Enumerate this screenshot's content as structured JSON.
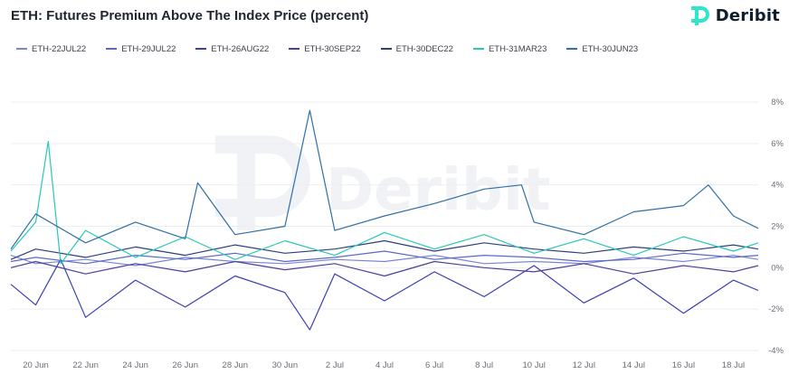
{
  "header": {
    "title": "ETH: Futures Premium Above The Index Price (percent)",
    "brand": "Deribit"
  },
  "watermark": {
    "text": "Deribit"
  },
  "colors": {
    "accent": "#2ee6c8",
    "grid": "#eceef2",
    "logo": "#2ee6c8"
  },
  "chart_data": {
    "type": "line",
    "title": "ETH: Futures Premium Above The Index Price (percent)",
    "xlabel": "",
    "ylabel": "",
    "ylim": [
      -4,
      8
    ],
    "y_ticks": [
      8,
      6,
      4,
      2,
      0,
      -2,
      -4
    ],
    "y_tick_labels": [
      "8%",
      "6%",
      "4%",
      "2%",
      "0%",
      "-2%",
      "-4%"
    ],
    "x_range": [
      "2022-06-19",
      "2022-07-19"
    ],
    "x_ticks": [
      "2022-06-20",
      "2022-06-22",
      "2022-06-24",
      "2022-06-26",
      "2022-06-28",
      "2022-06-30",
      "2022-07-02",
      "2022-07-04",
      "2022-07-06",
      "2022-07-08",
      "2022-07-10",
      "2022-07-12",
      "2022-07-14",
      "2022-07-16",
      "2022-07-18"
    ],
    "x_tick_labels": [
      "20 Jun",
      "22 Jun",
      "24 Jun",
      "26 Jun",
      "28 Jun",
      "30 Jun",
      "2 Jul",
      "4 Jul",
      "6 Jul",
      "8 Jul",
      "10 Jul",
      "12 Jul",
      "14 Jul",
      "16 Jul",
      "18 Jul"
    ],
    "grid": true,
    "legend_position": "top-left",
    "y_axis_position": "right",
    "series": [
      {
        "name": "ETH-22JUL22",
        "color": "#7b86d6",
        "points": [
          [
            "2022-06-19",
            0.6
          ],
          [
            "2022-06-20",
            0.2
          ],
          [
            "2022-06-22",
            0.4
          ],
          [
            "2022-06-24",
            0.1
          ],
          [
            "2022-06-26",
            0.5
          ],
          [
            "2022-06-28",
            0.3
          ],
          [
            "2022-06-30",
            0.2
          ],
          [
            "2022-07-02",
            0.4
          ],
          [
            "2022-07-04",
            0.3
          ],
          [
            "2022-07-06",
            0.6
          ],
          [
            "2022-07-08",
            0.2
          ],
          [
            "2022-07-10",
            0.3
          ],
          [
            "2022-07-12",
            0.2
          ],
          [
            "2022-07-14",
            0.5
          ],
          [
            "2022-07-16",
            0.3
          ],
          [
            "2022-07-18",
            0.6
          ],
          [
            "2022-07-19",
            0.4
          ]
        ]
      },
      {
        "name": "ETH-29JUL22",
        "color": "#5a69c9",
        "points": [
          [
            "2022-06-19",
            0.3
          ],
          [
            "2022-06-20",
            0.5
          ],
          [
            "2022-06-22",
            0.2
          ],
          [
            "2022-06-24",
            0.6
          ],
          [
            "2022-06-26",
            0.4
          ],
          [
            "2022-06-28",
            0.7
          ],
          [
            "2022-06-30",
            0.3
          ],
          [
            "2022-07-02",
            0.5
          ],
          [
            "2022-07-04",
            0.8
          ],
          [
            "2022-07-06",
            0.4
          ],
          [
            "2022-07-08",
            0.6
          ],
          [
            "2022-07-10",
            0.5
          ],
          [
            "2022-07-12",
            0.3
          ],
          [
            "2022-07-14",
            0.4
          ],
          [
            "2022-07-16",
            0.7
          ],
          [
            "2022-07-18",
            0.5
          ],
          [
            "2022-07-19",
            0.6
          ]
        ]
      },
      {
        "name": "ETH-26AUG22",
        "color": "#3b3fb0",
        "points": [
          [
            "2022-06-19",
            -0.8
          ],
          [
            "2022-06-20",
            -1.8
          ],
          [
            "2022-06-21",
            0.4
          ],
          [
            "2022-06-22",
            -2.4
          ],
          [
            "2022-06-24",
            -0.6
          ],
          [
            "2022-06-26",
            -1.9
          ],
          [
            "2022-06-28",
            -0.4
          ],
          [
            "2022-06-30",
            -1.2
          ],
          [
            "2022-07-01",
            -3.0
          ],
          [
            "2022-07-02",
            -0.3
          ],
          [
            "2022-07-04",
            -1.6
          ],
          [
            "2022-07-06",
            -0.2
          ],
          [
            "2022-07-08",
            -1.4
          ],
          [
            "2022-07-10",
            0.1
          ],
          [
            "2022-07-12",
            -1.7
          ],
          [
            "2022-07-14",
            -0.5
          ],
          [
            "2022-07-16",
            -2.2
          ],
          [
            "2022-07-18",
            -0.6
          ],
          [
            "2022-07-19",
            -1.1
          ]
        ]
      },
      {
        "name": "ETH-30SEP22",
        "color": "#4a3f9a",
        "points": [
          [
            "2022-06-19",
            0.0
          ],
          [
            "2022-06-20",
            0.3
          ],
          [
            "2022-06-22",
            -0.3
          ],
          [
            "2022-06-24",
            0.2
          ],
          [
            "2022-06-26",
            -0.2
          ],
          [
            "2022-06-28",
            0.3
          ],
          [
            "2022-06-30",
            -0.1
          ],
          [
            "2022-07-02",
            0.2
          ],
          [
            "2022-07-04",
            -0.4
          ],
          [
            "2022-07-06",
            0.3
          ],
          [
            "2022-07-08",
            0.0
          ],
          [
            "2022-07-10",
            -0.2
          ],
          [
            "2022-07-12",
            0.2
          ],
          [
            "2022-07-14",
            -0.3
          ],
          [
            "2022-07-16",
            0.1
          ],
          [
            "2022-07-18",
            -0.2
          ],
          [
            "2022-07-19",
            0.1
          ]
        ]
      },
      {
        "name": "ETH-30DEC22",
        "color": "#2c3f7e",
        "points": [
          [
            "2022-06-19",
            0.4
          ],
          [
            "2022-06-20",
            0.9
          ],
          [
            "2022-06-22",
            0.5
          ],
          [
            "2022-06-24",
            1.0
          ],
          [
            "2022-06-26",
            0.6
          ],
          [
            "2022-06-28",
            1.1
          ],
          [
            "2022-06-30",
            0.7
          ],
          [
            "2022-07-02",
            0.9
          ],
          [
            "2022-07-04",
            1.3
          ],
          [
            "2022-07-06",
            0.8
          ],
          [
            "2022-07-08",
            1.2
          ],
          [
            "2022-07-10",
            0.9
          ],
          [
            "2022-07-12",
            0.7
          ],
          [
            "2022-07-14",
            1.0
          ],
          [
            "2022-07-16",
            0.8
          ],
          [
            "2022-07-18",
            1.1
          ],
          [
            "2022-07-19",
            0.9
          ]
        ]
      },
      {
        "name": "ETH-31MAR23",
        "color": "#27c9b6",
        "points": [
          [
            "2022-06-19",
            0.8
          ],
          [
            "2022-06-20",
            2.2
          ],
          [
            "2022-06-20.5",
            6.1
          ],
          [
            "2022-06-21",
            0.2
          ],
          [
            "2022-06-22",
            1.8
          ],
          [
            "2022-06-24",
            0.5
          ],
          [
            "2022-06-26",
            1.5
          ],
          [
            "2022-06-28",
            0.4
          ],
          [
            "2022-06-30",
            1.3
          ],
          [
            "2022-07-02",
            0.6
          ],
          [
            "2022-07-04",
            1.7
          ],
          [
            "2022-07-06",
            0.9
          ],
          [
            "2022-07-08",
            1.6
          ],
          [
            "2022-07-10",
            0.7
          ],
          [
            "2022-07-12",
            1.4
          ],
          [
            "2022-07-14",
            0.6
          ],
          [
            "2022-07-16",
            1.5
          ],
          [
            "2022-07-18",
            0.8
          ],
          [
            "2022-07-19",
            1.2
          ]
        ]
      },
      {
        "name": "ETH-30JUN23",
        "color": "#2f6fa8",
        "points": [
          [
            "2022-06-19",
            0.9
          ],
          [
            "2022-06-20",
            2.6
          ],
          [
            "2022-06-22",
            1.2
          ],
          [
            "2022-06-24",
            2.2
          ],
          [
            "2022-06-26",
            1.4
          ],
          [
            "2022-06-26.5",
            4.1
          ],
          [
            "2022-06-28",
            1.6
          ],
          [
            "2022-06-30",
            2.0
          ],
          [
            "2022-07-01",
            7.6
          ],
          [
            "2022-07-02",
            1.8
          ],
          [
            "2022-07-04",
            2.5
          ],
          [
            "2022-07-06",
            3.1
          ],
          [
            "2022-07-08",
            3.8
          ],
          [
            "2022-07-09.5",
            4.0
          ],
          [
            "2022-07-10",
            2.2
          ],
          [
            "2022-07-12",
            1.6
          ],
          [
            "2022-07-14",
            2.7
          ],
          [
            "2022-07-16",
            3.0
          ],
          [
            "2022-07-17",
            4.0
          ],
          [
            "2022-07-18",
            2.5
          ],
          [
            "2022-07-19",
            1.9
          ]
        ]
      }
    ]
  }
}
